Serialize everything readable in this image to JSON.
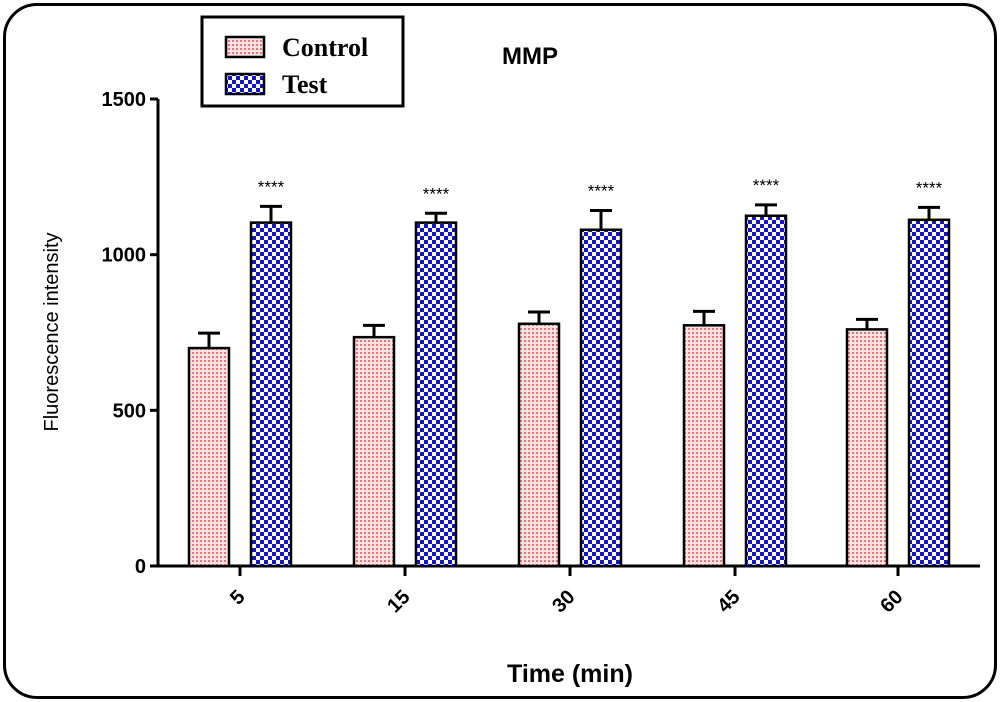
{
  "chart_data": {
    "type": "bar",
    "title": "MMP",
    "xlabel": "Time (min)",
    "ylabel": "Fluorescence intensity",
    "categories": [
      "5",
      "15",
      "30",
      "45",
      "60"
    ],
    "ylim": [
      0,
      1500
    ],
    "yticks": [
      "0",
      "500",
      "1000",
      "1500"
    ],
    "series": [
      {
        "name": "Control",
        "values": [
          700,
          735,
          778,
          773,
          760
        ],
        "errors": [
          48,
          38,
          38,
          45,
          32
        ],
        "color": "#e07c7c",
        "pattern": "dotted-pink"
      },
      {
        "name": "Test",
        "values": [
          1103,
          1103,
          1080,
          1125,
          1112
        ],
        "errors": [
          52,
          30,
          62,
          35,
          40
        ],
        "color": "#1d1dbf",
        "pattern": "checker-blue"
      }
    ],
    "annotations": [
      "****",
      "****",
      "****",
      "****",
      "****"
    ],
    "legend_position": "top-left"
  }
}
